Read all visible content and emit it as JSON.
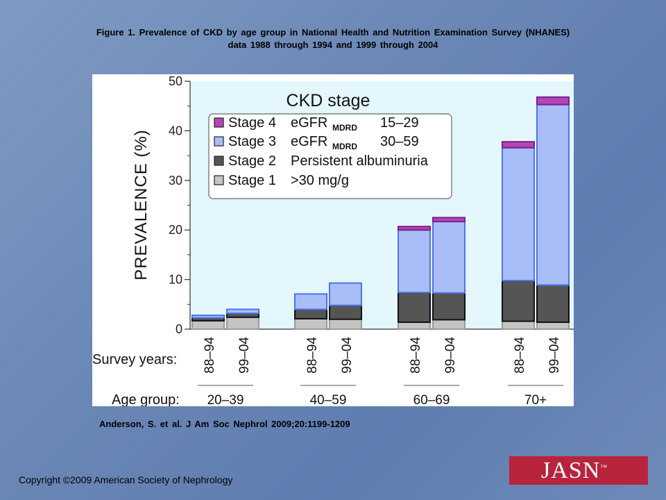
{
  "slide": {
    "title_line1": "Figure 1. Prevalence  of CKD by age group in National Health and Nutrition Examination  Survey (NHANES)",
    "title_line2": "data  1988  through  1994  and  1999  through  2004",
    "citation": "Anderson,  S. et al. J Am Soc Nephrol 2009;20:1199-1209",
    "copyright": "Copyright ©2009 American Society of Nephrology",
    "logo_text": "JASN",
    "logo_tm": "™"
  },
  "chart_data": {
    "type": "bar",
    "stacked": true,
    "ylabel": "PREVALENCE (%)",
    "ylim": [
      0,
      50
    ],
    "yticks": [
      0,
      10,
      20,
      30,
      40,
      50
    ],
    "legend_title": "CKD stage",
    "legend_position": "top-center",
    "survey_years_label": "Survey years:",
    "age_group_label": "Age group:",
    "legend": [
      {
        "stage": "Stage 4",
        "def_main": "eGFR",
        "def_sub": "MDRD",
        "def_range": "15–29",
        "color": "#b246b8"
      },
      {
        "stage": "Stage 3",
        "def_main": "eGFR",
        "def_sub": "MDRD",
        "def_range": "30–59",
        "color": "#a9bdf7"
      },
      {
        "stage": "Stage 2",
        "def_main": "Persistent albuminuria",
        "def_sub": "",
        "def_range": "",
        "color": "#555555"
      },
      {
        "stage": "Stage 1",
        "def_main": ">30 mg/g",
        "def_sub": "",
        "def_range": "",
        "color": "#c4c4c4"
      }
    ],
    "groups": [
      {
        "age": "20–39",
        "bars": [
          {
            "years": "88–94",
            "stage1": 1.7,
            "stage2": 0.6,
            "stage3": 0.5,
            "stage4": 0.0
          },
          {
            "years": "99–04",
            "stage1": 2.4,
            "stage2": 0.8,
            "stage3": 0.8,
            "stage4": 0.0
          }
        ]
      },
      {
        "age": "40–59",
        "bars": [
          {
            "years": "88–94",
            "stage1": 2.1,
            "stage2": 1.9,
            "stage3": 3.1,
            "stage4": 0.0
          },
          {
            "years": "99–04",
            "stage1": 2.0,
            "stage2": 2.8,
            "stage3": 4.5,
            "stage4": 0.0
          }
        ]
      },
      {
        "age": "60–69",
        "bars": [
          {
            "years": "88–94",
            "stage1": 1.4,
            "stage2": 6.0,
            "stage3": 12.6,
            "stage4": 0.7
          },
          {
            "years": "99–04",
            "stage1": 1.9,
            "stage2": 5.4,
            "stage3": 14.4,
            "stage4": 0.8
          }
        ]
      },
      {
        "age": "70+",
        "bars": [
          {
            "years": "88–94",
            "stage1": 1.6,
            "stage2": 8.2,
            "stage3": 26.8,
            "stage4": 1.2
          },
          {
            "years": "99–04",
            "stage1": 1.4,
            "stage2": 7.5,
            "stage3": 36.4,
            "stage4": 1.5
          }
        ]
      }
    ]
  }
}
